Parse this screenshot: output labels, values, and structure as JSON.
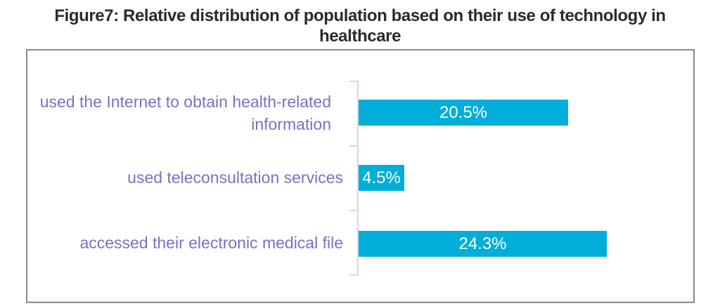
{
  "title": "Figure7: Relative distribution of population based on their use of technology in healthcare",
  "colors": {
    "bar": "#00aed9",
    "category_label": "#7b70c6",
    "value_label": "#ffffff",
    "title_text": "#2b2a33",
    "axis_line": "#d8d4ee",
    "chart_border": "#8a8a8a",
    "background": "#ffffff"
  },
  "chart_data": {
    "type": "bar",
    "orientation": "horizontal",
    "title": "Figure7: Relative distribution of population based on their use of technology in healthcare",
    "categories": [
      "used the Internet to obtain health-related information",
      "used teleconsultation services",
      "accessed their electronic medical file"
    ],
    "values": [
      20.5,
      4.5,
      24.3
    ],
    "value_labels": [
      "20.5%",
      "4.5%",
      "24.3%"
    ],
    "unit": "%",
    "xlabel": "",
    "ylabel": "",
    "xlim": [
      0,
      26
    ],
    "grid": false,
    "legend": false,
    "value_label_position": "center-inside-bar"
  }
}
